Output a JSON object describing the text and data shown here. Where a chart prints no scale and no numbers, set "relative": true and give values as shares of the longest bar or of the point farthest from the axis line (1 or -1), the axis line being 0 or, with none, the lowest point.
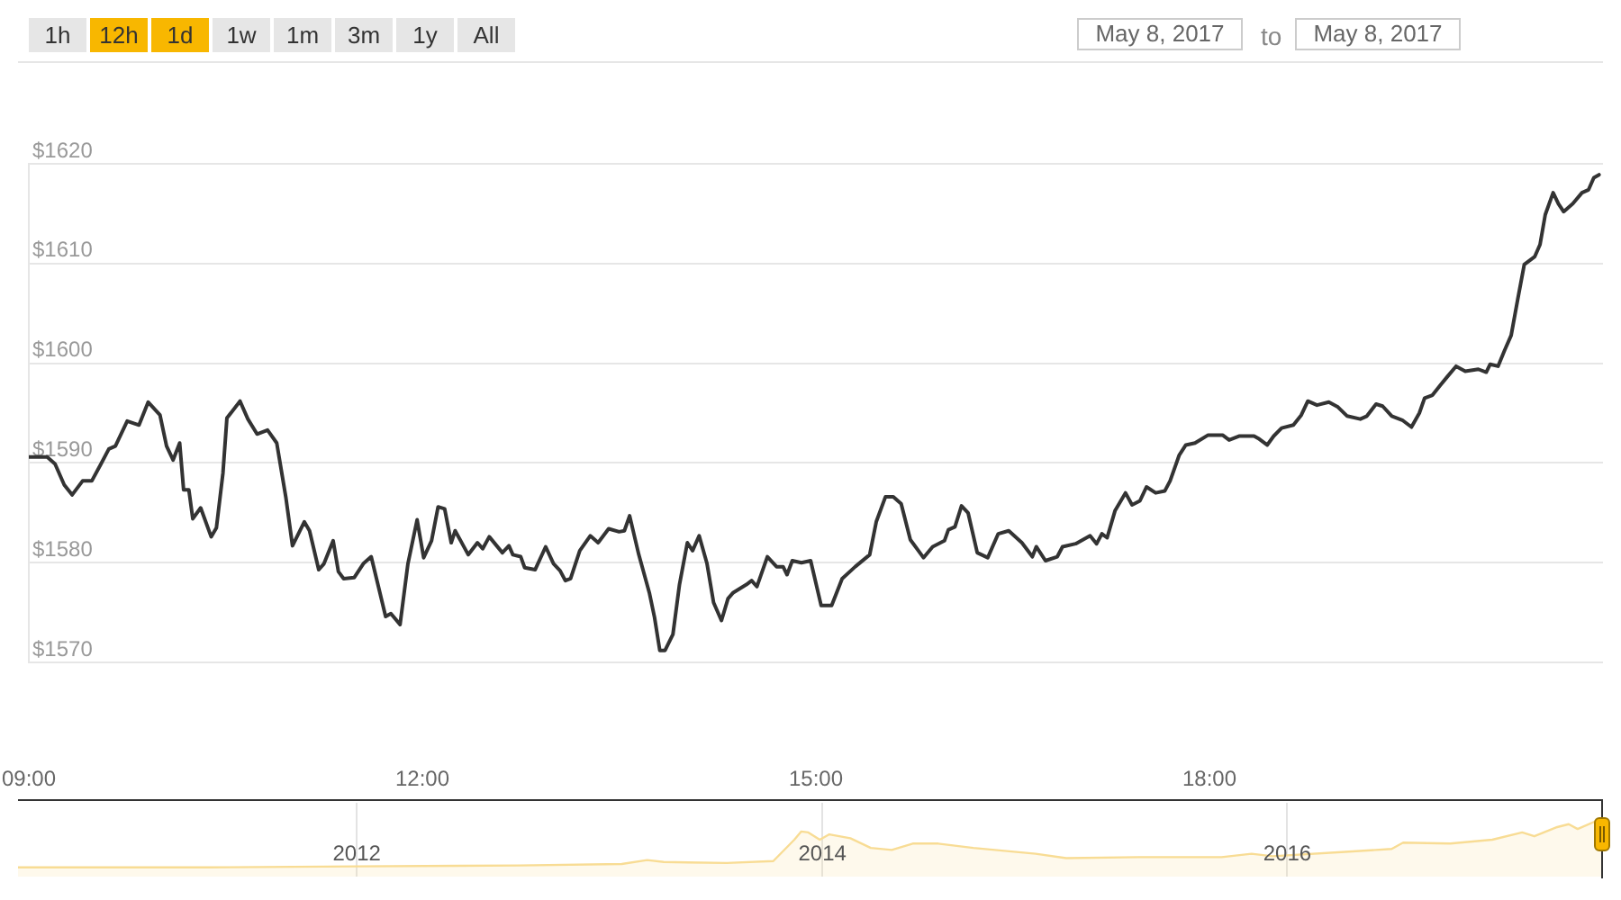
{
  "chart_data": [
    {
      "type": "line",
      "color": "#333333",
      "x": [
        9.0,
        9.14,
        9.2,
        9.27,
        9.33,
        9.41,
        9.48,
        9.55,
        9.61,
        9.66,
        9.75,
        9.84,
        9.91,
        10.0,
        10.05,
        10.1,
        10.15,
        10.18,
        10.22,
        10.25,
        10.31,
        10.39,
        10.43,
        10.48,
        10.51,
        10.61,
        10.67,
        10.74,
        10.82,
        10.89,
        10.96,
        11.01,
        11.1,
        11.14,
        11.21,
        11.25,
        11.32,
        11.36,
        11.4,
        11.48,
        11.55,
        11.61,
        11.72,
        11.76,
        11.83,
        11.89,
        11.96,
        12.01,
        12.07,
        12.12,
        12.17,
        12.22,
        12.25,
        12.35,
        12.42,
        12.46,
        12.51,
        12.61,
        12.66,
        12.69,
        12.75,
        12.78,
        12.86,
        12.94,
        13.0,
        13.05,
        13.09,
        13.13,
        13.2,
        13.28,
        13.34,
        13.42,
        13.5,
        13.54,
        13.58,
        13.65,
        13.73,
        13.77,
        13.81,
        13.85,
        13.91,
        13.96,
        14.02,
        14.06,
        14.11,
        14.17,
        14.22,
        14.28,
        14.33,
        14.37,
        14.47,
        14.51,
        14.55,
        14.63,
        14.7,
        14.75,
        14.78,
        14.82,
        14.89,
        14.96,
        15.04,
        15.12,
        15.2,
        15.3,
        15.41,
        15.46,
        15.53,
        15.59,
        15.65,
        15.72,
        15.82,
        15.89,
        15.98,
        16.01,
        16.06,
        16.11,
        16.16,
        16.23,
        16.31,
        16.39,
        16.47,
        16.57,
        16.65,
        16.68,
        16.75,
        16.84,
        16.88,
        16.98,
        17.09,
        17.14,
        17.18,
        17.22,
        17.28,
        17.36,
        17.41,
        17.47,
        17.52,
        17.59,
        17.66,
        17.7,
        17.77,
        17.82,
        17.89,
        17.99,
        18.1,
        18.15,
        18.23,
        18.34,
        18.38,
        18.44,
        18.49,
        18.55,
        18.64,
        18.7,
        18.75,
        18.82,
        18.91,
        18.98,
        19.05,
        19.15,
        19.2,
        19.27,
        19.32,
        19.39,
        19.47,
        19.54,
        19.6,
        19.64,
        19.7,
        19.76,
        19.81,
        19.88,
        19.95,
        20.05,
        20.11,
        20.14,
        20.2,
        20.25,
        20.3,
        20.35,
        20.4,
        20.48,
        20.52,
        20.56,
        20.62,
        20.66,
        20.7,
        20.77,
        20.84,
        20.89,
        20.93,
        20.97
      ],
      "values": [
        1590.6,
        1590.6,
        1589.9,
        1587.8,
        1586.8,
        1588.2,
        1588.2,
        1589.9,
        1591.4,
        1591.7,
        1594.2,
        1593.8,
        1596.1,
        1594.8,
        1591.7,
        1590.3,
        1592.0,
        1587.3,
        1587.3,
        1584.4,
        1585.5,
        1582.6,
        1583.5,
        1589.0,
        1594.5,
        1596.2,
        1594.4,
        1592.9,
        1593.3,
        1592.0,
        1586.5,
        1581.7,
        1584.1,
        1583.2,
        1579.3,
        1579.9,
        1582.2,
        1579.1,
        1578.4,
        1578.5,
        1579.9,
        1580.6,
        1574.6,
        1574.9,
        1573.8,
        1579.9,
        1584.3,
        1580.5,
        1582.2,
        1585.6,
        1585.4,
        1582.0,
        1583.2,
        1580.8,
        1582.0,
        1581.4,
        1582.6,
        1581.0,
        1581.7,
        1580.8,
        1580.6,
        1579.5,
        1579.3,
        1581.6,
        1579.9,
        1579.2,
        1578.2,
        1578.4,
        1581.2,
        1582.7,
        1582.0,
        1583.4,
        1583.1,
        1583.2,
        1584.7,
        1580.8,
        1577.0,
        1574.5,
        1571.2,
        1571.2,
        1572.8,
        1577.8,
        1582.0,
        1581.2,
        1582.7,
        1579.9,
        1576.0,
        1574.2,
        1576.4,
        1577.0,
        1577.8,
        1578.2,
        1577.6,
        1580.6,
        1579.6,
        1579.6,
        1578.8,
        1580.2,
        1580.0,
        1580.2,
        1575.7,
        1575.7,
        1578.4,
        1579.6,
        1580.8,
        1584.1,
        1586.6,
        1586.6,
        1585.9,
        1582.3,
        1580.5,
        1581.6,
        1582.2,
        1583.3,
        1583.6,
        1585.7,
        1585.0,
        1581.0,
        1580.5,
        1582.9,
        1583.2,
        1582.0,
        1580.6,
        1581.6,
        1580.2,
        1580.6,
        1581.6,
        1581.9,
        1582.7,
        1581.9,
        1582.9,
        1582.5,
        1585.2,
        1587.0,
        1585.8,
        1586.2,
        1587.6,
        1587.0,
        1587.2,
        1588.2,
        1590.8,
        1591.8,
        1592.0,
        1592.8,
        1592.8,
        1592.3,
        1592.7,
        1592.7,
        1592.4,
        1591.8,
        1592.7,
        1593.5,
        1593.8,
        1594.8,
        1596.2,
        1595.8,
        1596.1,
        1595.6,
        1594.7,
        1594.4,
        1594.7,
        1595.9,
        1595.7,
        1594.7,
        1594.3,
        1593.6,
        1595.0,
        1596.5,
        1596.8,
        1597.8,
        1598.6,
        1599.7,
        1599.2,
        1599.4,
        1599.1,
        1599.9,
        1599.7,
        1601.3,
        1602.8,
        1606.4,
        1609.9,
        1610.7,
        1611.9,
        1614.9,
        1617.1,
        1616.0,
        1615.2,
        1616.0,
        1617.1,
        1617.4,
        1618.6,
        1618.9
      ],
      "xlim": [
        9,
        21
      ],
      "xticks": [
        {
          "value": 9,
          "label": "09:00"
        },
        {
          "value": 12,
          "label": "12:00"
        },
        {
          "value": 15,
          "label": "15:00"
        },
        {
          "value": 18,
          "label": "18:00"
        }
      ],
      "ylim": [
        1570,
        1620
      ],
      "yticks": [
        {
          "value": 1570,
          "label": "$1570"
        },
        {
          "value": 1580,
          "label": "$1580"
        },
        {
          "value": 1590,
          "label": "$1590"
        },
        {
          "value": 1600,
          "label": "$1600"
        },
        {
          "value": 1610,
          "label": "$1610"
        },
        {
          "value": 1620,
          "label": "$1620"
        }
      ],
      "grid": "y",
      "annotations": [
        "1h",
        "12h",
        "1d",
        "1w",
        "1m",
        "3m",
        "1y",
        "All",
        "May 8, 2017",
        "to",
        "May 8, 2017"
      ]
    },
    {
      "type": "area",
      "relative": true,
      "color": "#f8dc94",
      "x": [
        "2010-07-18",
        "2011-05-10",
        "2012-01-01",
        "2012-09-12",
        "2013-02-20",
        "2013-04-01",
        "2013-04-27",
        "2013-08-04",
        "2013-10-16",
        "2013-11-18",
        "2013-11-29",
        "2013-12-10",
        "2013-12-28",
        "2014-01-12",
        "2014-02-14",
        "2014-03-18",
        "2014-04-20",
        "2014-05-23",
        "2014-07-02",
        "2014-08-26",
        "2014-12-02",
        "2015-01-19",
        "2015-05-12",
        "2015-09-20",
        "2015-11-06",
        "2015-12-09",
        "2016-04-01",
        "2016-06-13",
        "2016-07-01",
        "2016-09-13",
        "2016-11-18",
        "2017-01-04",
        "2017-01-23",
        "2017-02-28",
        "2017-03-18",
        "2017-04-01",
        "2017-05-08"
      ],
      "values": [
        0,
        0,
        0.02,
        0.04,
        0.07,
        0.15,
        0.11,
        0.09,
        0.13,
        0.57,
        0.74,
        0.72,
        0.57,
        0.68,
        0.6,
        0.4,
        0.36,
        0.49,
        0.49,
        0.4,
        0.28,
        0.19,
        0.21,
        0.21,
        0.28,
        0.23,
        0.32,
        0.38,
        0.51,
        0.49,
        0.57,
        0.72,
        0.64,
        0.83,
        0.89,
        0.79,
        1
      ],
      "xlim": [
        "2010-07-18",
        "2017-05-08"
      ],
      "xticks": [
        "2012",
        "2014",
        "2016"
      ],
      "grid": "x"
    }
  ]
}
